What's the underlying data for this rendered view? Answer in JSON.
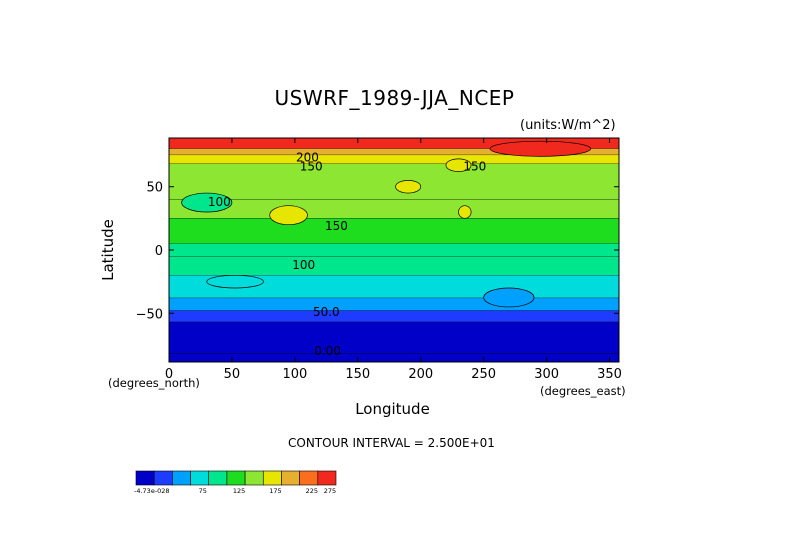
{
  "chart_data": {
    "type": "heatmap",
    "title": "USWRF_1989-JJA_NCEP",
    "units": "(units:W/m^2)",
    "xlabel": "Longitude",
    "ylabel": "Latitude",
    "x_units": "(degrees_east)",
    "y_units": "(degrees_north)",
    "xlim": [
      0,
      357.5
    ],
    "ylim": [
      -88.5,
      88.5
    ],
    "x_ticks": [
      0,
      50,
      100,
      150,
      200,
      250,
      300,
      350
    ],
    "x_tick_labels": [
      "0",
      "50",
      "100",
      "150",
      "200",
      "250",
      "300",
      "350"
    ],
    "y_ticks": [
      50,
      0,
      -50
    ],
    "y_tick_labels": [
      "50",
      "0",
      "−50"
    ],
    "contour_interval": "CONTOUR INTERVAL = 2.500E+01",
    "contour_labels": [
      {
        "text": "200",
        "lon": 110,
        "lat": 73
      },
      {
        "text": "150",
        "lon": 113,
        "lat": 66
      },
      {
        "text": "150",
        "lon": 243,
        "lat": 66
      },
      {
        "text": "100",
        "lon": 40,
        "lat": 38
      },
      {
        "text": "150",
        "lon": 133,
        "lat": 19
      },
      {
        "text": "100",
        "lon": 107,
        "lat": -12
      },
      {
        "text": "50.0",
        "lon": 125,
        "lat": -49
      },
      {
        "text": "0.00",
        "lon": 126,
        "lat": -80
      }
    ],
    "bands": [
      {
        "lat_top": 88.5,
        "lat_bottom": 80,
        "value": 262
      },
      {
        "lat_top": 80,
        "lat_bottom": 75,
        "value": 220
      },
      {
        "lat_top": 75,
        "lat_bottom": 68,
        "value": 180
      },
      {
        "lat_top": 68,
        "lat_bottom": 40,
        "value": 150
      },
      {
        "lat_top": 40,
        "lat_bottom": 25,
        "value": 160
      },
      {
        "lat_top": 25,
        "lat_bottom": 5,
        "value": 145
      },
      {
        "lat_top": 5,
        "lat_bottom": -5,
        "value": 120
      },
      {
        "lat_top": -5,
        "lat_bottom": -20,
        "value": 100
      },
      {
        "lat_top": -20,
        "lat_bottom": -38,
        "value": 88
      },
      {
        "lat_top": -38,
        "lat_bottom": -48,
        "value": 62
      },
      {
        "lat_top": -48,
        "lat_bottom": -57,
        "value": 38
      },
      {
        "lat_top": -57,
        "lat_bottom": -82,
        "value": 12
      },
      {
        "lat_top": -82,
        "lat_bottom": -88.5,
        "value": 0
      }
    ],
    "patches": [
      {
        "lon_min": 255,
        "lon_max": 335,
        "lat_min": 74,
        "lat_max": 86,
        "value": 268
      },
      {
        "lon_min": 220,
        "lon_max": 240,
        "lat_min": 62,
        "lat_max": 72,
        "value": 190
      },
      {
        "lon_min": 180,
        "lon_max": 200,
        "lat_min": 45,
        "lat_max": 55,
        "value": 185
      },
      {
        "lon_min": 230,
        "lon_max": 240,
        "lat_min": 25,
        "lat_max": 35,
        "value": 190
      },
      {
        "lon_min": 80,
        "lon_max": 110,
        "lat_min": 20,
        "lat_max": 35,
        "value": 180
      },
      {
        "lon_min": 10,
        "lon_max": 50,
        "lat_min": 30,
        "lat_max": 45,
        "value": 120
      },
      {
        "lon_min": 250,
        "lon_max": 290,
        "lat_min": -45,
        "lat_max": -30,
        "value": 70
      },
      {
        "lon_min": 30,
        "lon_max": 75,
        "lat_min": -30,
        "lat_max": -20,
        "value": 95
      }
    ],
    "colorbar": {
      "colors": [
        "#0000c8",
        "#1e3cff",
        "#00a0ff",
        "#00dcdc",
        "#00e68c",
        "#1edc1e",
        "#8ce632",
        "#e6e600",
        "#e6af2d",
        "#fa6e1e",
        "#f0281e"
      ],
      "levels": [
        0,
        25,
        50,
        75,
        100,
        125,
        150,
        175,
        200,
        225,
        250,
        275
      ],
      "tick_labels": [
        "-4.73e-028",
        "75",
        "125",
        "175",
        "225",
        "275"
      ]
    }
  }
}
